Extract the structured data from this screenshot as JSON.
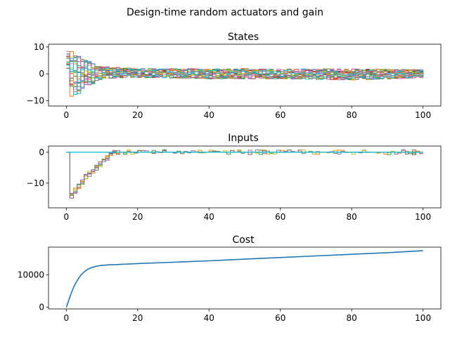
{
  "figure": {
    "title": "Design-time random actuators and gain"
  },
  "chart_data": [
    {
      "type": "line",
      "title": "States",
      "step": true,
      "xlim": [
        -5,
        105
      ],
      "ylim": [
        -12,
        11
      ],
      "xticks": [
        0,
        20,
        40,
        60,
        80,
        100
      ],
      "yticks": [
        -10,
        0,
        10
      ],
      "xlabel": "",
      "ylabel": "",
      "grid": false,
      "series_count": 20,
      "envelope": {
        "x": [
          0,
          1,
          2,
          5,
          10,
          20,
          40,
          60,
          80,
          100
        ],
        "upper": [
          9.5,
          9,
          7,
          5.5,
          3.5,
          2.5,
          2.5,
          2.5,
          2.5,
          2
        ],
        "lower": [
          3,
          -10,
          -9,
          -5,
          -2.5,
          -2,
          -2.5,
          -2.5,
          -3,
          -2
        ]
      }
    },
    {
      "type": "line",
      "title": "Inputs",
      "step": true,
      "xlim": [
        -5,
        105
      ],
      "ylim": [
        -18,
        2
      ],
      "xticks": [
        0,
        20,
        40,
        60,
        80,
        100
      ],
      "yticks": [
        -10,
        0
      ],
      "xlabel": "",
      "ylabel": "",
      "grid": false,
      "series_count": 6,
      "ramp": {
        "x": [
          0,
          1,
          2,
          3,
          4,
          5,
          6,
          7,
          8,
          9,
          10,
          11,
          12,
          13
        ],
        "values": [
          -16.5,
          -14,
          -12.5,
          -11,
          -9.5,
          -8,
          -7,
          -6,
          -5,
          -4,
          -3,
          -2,
          -1,
          0.3
        ]
      }
    },
    {
      "type": "line",
      "title": "Cost",
      "xlim": [
        -5,
        105
      ],
      "ylim": [
        -500,
        18500
      ],
      "xticks": [
        0,
        20,
        40,
        60,
        80,
        100
      ],
      "yticks": [
        0,
        10000
      ],
      "xlabel": "",
      "ylabel": "",
      "grid": false,
      "series": [
        {
          "name": "",
          "color": "#1f77b4",
          "x": [
            0,
            1,
            2,
            3,
            4,
            5,
            6,
            7,
            8,
            9,
            10,
            12,
            14,
            16,
            18,
            20,
            30,
            40,
            50,
            60,
            70,
            80,
            90,
            100
          ],
          "values": [
            0,
            3200,
            6100,
            8200,
            9800,
            10900,
            11700,
            12200,
            12500,
            12750,
            12900,
            13050,
            13150,
            13250,
            13350,
            13450,
            13850,
            14300,
            14800,
            15300,
            15800,
            16300,
            16800,
            17400
          ]
        }
      ]
    }
  ],
  "palette": [
    "#1f77b4",
    "#ff7f0e",
    "#2ca02c",
    "#d62728",
    "#9467bd",
    "#8c564b",
    "#e377c2",
    "#7f7f7f",
    "#bcbd22",
    "#17becf"
  ]
}
